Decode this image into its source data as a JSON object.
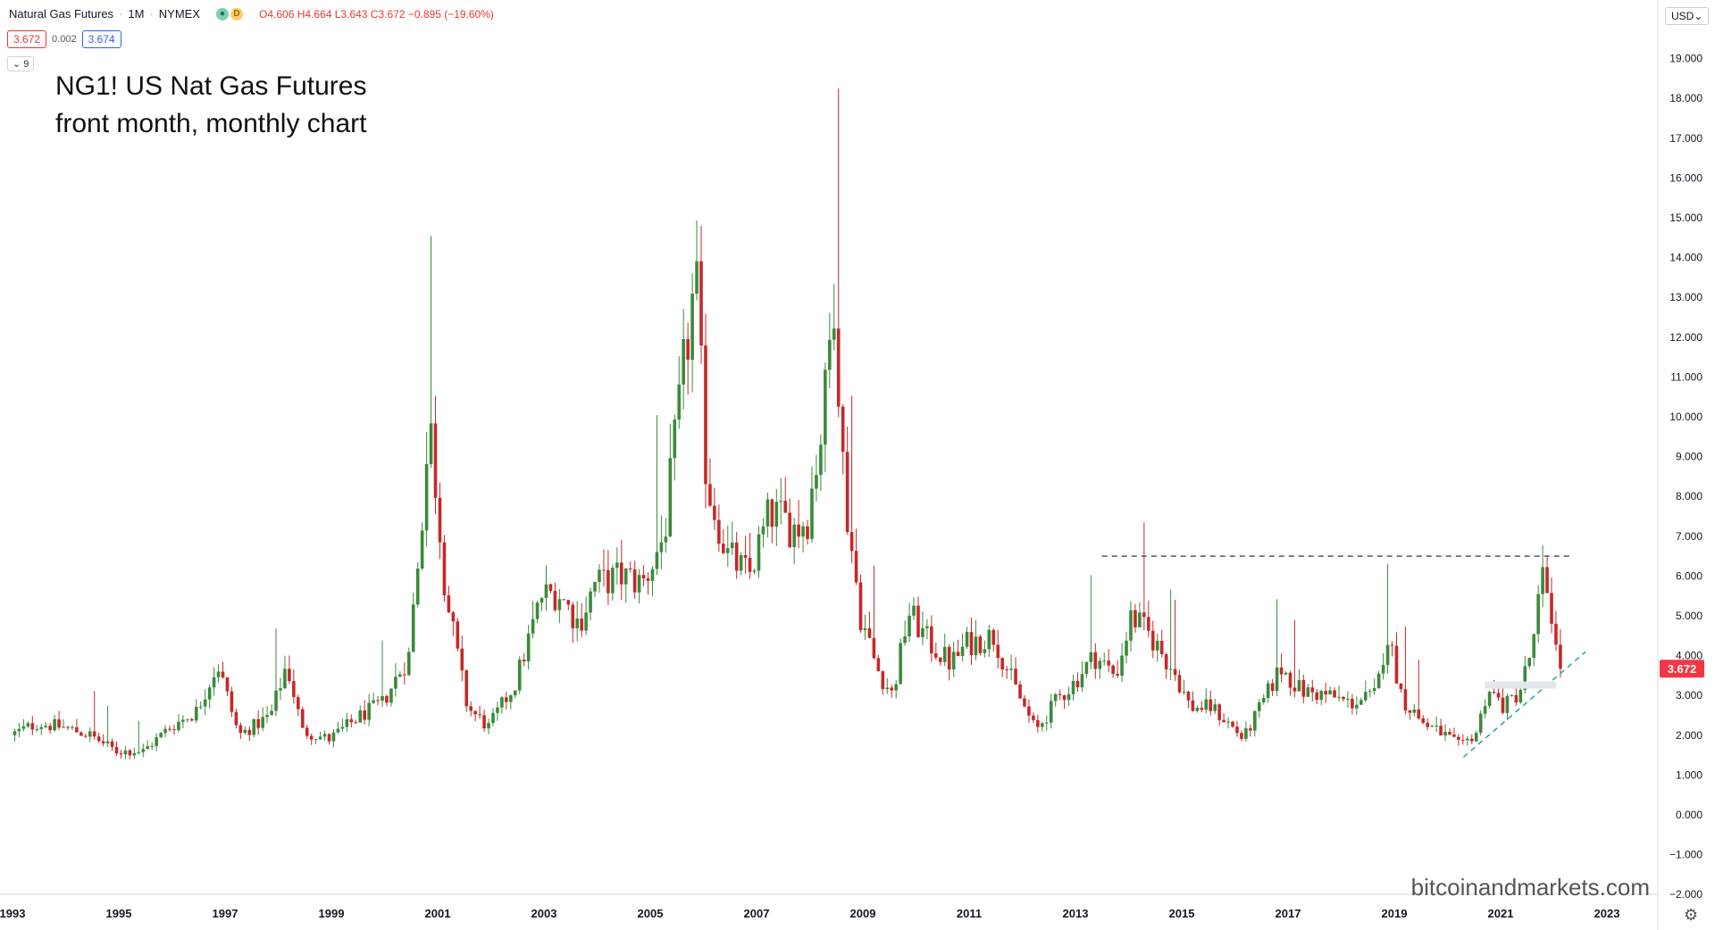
{
  "header": {
    "symbol_name": "Natural Gas Futures",
    "interval": "1M",
    "exchange": "NYMEX",
    "eye_icon": "eye-icon",
    "d_badge": "D",
    "ohlc": "O4.606  H4.664  L3.643  C3.672  −0.895 (−19.60%)",
    "bid": "3.672",
    "spread": "0.002",
    "ask": "3.674",
    "collapse_label": "⌄ 9"
  },
  "annotation": {
    "line1": "NG1! US Nat Gas Futures",
    "line2": "front month, monthly chart"
  },
  "watermark": "bitcoinandmarkets.com",
  "currency_button": "USD⌄",
  "settings_icon": "gear-icon",
  "colors": {
    "up": "#3a8a3a",
    "down": "#c62828",
    "price_tag": "#f23645",
    "trendline": "#26a69a",
    "resistance": "#555555"
  },
  "chart_data": {
    "type": "candlestick",
    "title": "Natural Gas Futures · 1M · NYMEX",
    "xlabel": "",
    "ylabel": "",
    "x_ticks": [
      "1993",
      "1995",
      "1997",
      "1999",
      "2001",
      "2003",
      "2005",
      "2007",
      "2009",
      "2011",
      "2013",
      "2015",
      "2017",
      "2019",
      "2021",
      "2023"
    ],
    "y_ticks": [
      "19.000",
      "18.000",
      "17.000",
      "16.000",
      "15.000",
      "14.000",
      "13.000",
      "12.000",
      "11.000",
      "10.000",
      "9.000",
      "8.000",
      "7.000",
      "6.000",
      "5.000",
      "4.000",
      "3.000",
      "2.000",
      "1.000",
      "0.000",
      "−1.000",
      "−2.000"
    ],
    "ylim": [
      -2,
      19
    ],
    "xlim": [
      1993.0,
      2024.5
    ],
    "last_price": "3.672",
    "resistance": {
      "level": 6.5,
      "x_start": 2013.5,
      "x_end": 2022.3
    },
    "trendline": {
      "x_start": 2020.3,
      "y_start": 1.45,
      "x_end": 2022.6,
      "y_end": 4.1
    },
    "anchors": [
      [
        1993.0,
        2.0
      ],
      [
        1993.5,
        2.3
      ],
      [
        1994.0,
        2.2
      ],
      [
        1994.5,
        2.0
      ],
      [
        1995.0,
        1.6
      ],
      [
        1995.5,
        1.6
      ],
      [
        1996.0,
        2.2
      ],
      [
        1996.5,
        2.6
      ],
      [
        1996.9,
        3.8
      ],
      [
        1997.3,
        2.0
      ],
      [
        1997.9,
        2.5
      ],
      [
        1998.2,
        3.8
      ],
      [
        1998.5,
        2.1
      ],
      [
        1999.0,
        1.9
      ],
      [
        1999.6,
        2.5
      ],
      [
        2000.0,
        2.8
      ],
      [
        2000.5,
        4.0
      ],
      [
        2000.9,
        9.8
      ],
      [
        2001.2,
        5.5
      ],
      [
        2001.6,
        2.7
      ],
      [
        2002.0,
        2.2
      ],
      [
        2002.5,
        3.3
      ],
      [
        2003.0,
        5.5
      ],
      [
        2003.3,
        5.6
      ],
      [
        2003.7,
        4.8
      ],
      [
        2004.0,
        5.8
      ],
      [
        2004.5,
        6.0
      ],
      [
        2004.9,
        5.8
      ],
      [
        2005.3,
        7.0
      ],
      [
        2005.7,
        11.5
      ],
      [
        2005.9,
        13.5
      ],
      [
        2006.1,
        8.4
      ],
      [
        2006.5,
        6.5
      ],
      [
        2006.9,
        6.0
      ],
      [
        2007.3,
        7.6
      ],
      [
        2007.8,
        7.2
      ],
      [
        2008.0,
        7.5
      ],
      [
        2008.3,
        10.0
      ],
      [
        2008.5,
        13.2
      ],
      [
        2008.7,
        8.0
      ],
      [
        2009.0,
        5.0
      ],
      [
        2009.3,
        3.7
      ],
      [
        2009.6,
        3.0
      ],
      [
        2009.9,
        5.1
      ],
      [
        2010.3,
        4.3
      ],
      [
        2010.7,
        3.8
      ],
      [
        2011.0,
        4.3
      ],
      [
        2011.5,
        4.5
      ],
      [
        2011.9,
        3.2
      ],
      [
        2012.3,
        2.1
      ],
      [
        2012.7,
        2.9
      ],
      [
        2013.0,
        3.3
      ],
      [
        2013.4,
        4.0
      ],
      [
        2013.8,
        3.5
      ],
      [
        2014.1,
        5.0
      ],
      [
        2014.5,
        4.4
      ],
      [
        2014.9,
        3.6
      ],
      [
        2015.2,
        2.7
      ],
      [
        2015.6,
        2.7
      ],
      [
        2016.0,
        2.2
      ],
      [
        2016.2,
        1.9
      ],
      [
        2016.6,
        2.9
      ],
      [
        2016.9,
        3.7
      ],
      [
        2017.3,
        3.1
      ],
      [
        2017.8,
        3.0
      ],
      [
        2018.2,
        2.8
      ],
      [
        2018.7,
        3.0
      ],
      [
        2018.9,
        4.6
      ],
      [
        2019.2,
        2.9
      ],
      [
        2019.6,
        2.3
      ],
      [
        2020.0,
        2.0
      ],
      [
        2020.3,
        1.7
      ],
      [
        2020.6,
        2.1
      ],
      [
        2020.8,
        3.2
      ],
      [
        2021.1,
        2.7
      ],
      [
        2021.4,
        3.1
      ],
      [
        2021.7,
        4.5
      ],
      [
        2021.8,
        6.0
      ],
      [
        2021.95,
        5.6
      ],
      [
        2022.05,
        4.6
      ],
      [
        2022.12,
        3.672
      ]
    ]
  }
}
